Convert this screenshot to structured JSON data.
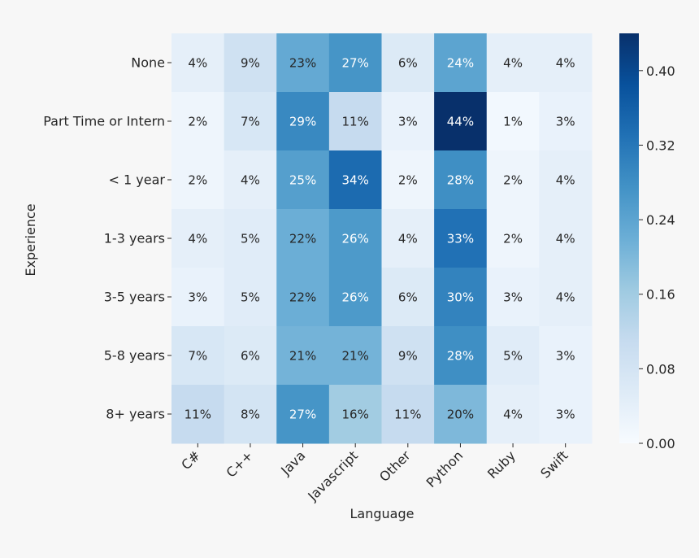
{
  "chart_data": {
    "type": "heatmap",
    "title": "",
    "xlabel": "Language",
    "ylabel": "Experience",
    "x_categories": [
      "C#",
      "C++",
      "Java",
      "Javascript",
      "Other",
      "Python",
      "Ruby",
      "Swift"
    ],
    "y_categories": [
      "None",
      "Part Time or Intern",
      "< 1 year",
      "1-3 years",
      "3-5 years",
      "5-8 years",
      "8+ years"
    ],
    "values": [
      [
        0.04,
        0.09,
        0.23,
        0.27,
        0.06,
        0.24,
        0.04,
        0.04
      ],
      [
        0.02,
        0.07,
        0.29,
        0.11,
        0.03,
        0.44,
        0.01,
        0.03
      ],
      [
        0.02,
        0.04,
        0.25,
        0.34,
        0.02,
        0.28,
        0.02,
        0.04
      ],
      [
        0.04,
        0.05,
        0.22,
        0.26,
        0.04,
        0.33,
        0.02,
        0.04
      ],
      [
        0.03,
        0.05,
        0.22,
        0.26,
        0.06,
        0.3,
        0.03,
        0.04
      ],
      [
        0.07,
        0.06,
        0.21,
        0.21,
        0.09,
        0.28,
        0.05,
        0.03
      ],
      [
        0.11,
        0.08,
        0.27,
        0.16,
        0.11,
        0.2,
        0.04,
        0.03
      ]
    ],
    "annotations": [
      [
        "4%",
        "9%",
        "23%",
        "27%",
        "6%",
        "24%",
        "4%",
        "4%"
      ],
      [
        "2%",
        "7%",
        "29%",
        "11%",
        "3%",
        "44%",
        "1%",
        "3%"
      ],
      [
        "2%",
        "4%",
        "25%",
        "34%",
        "2%",
        "28%",
        "2%",
        "4%"
      ],
      [
        "4%",
        "5%",
        "22%",
        "26%",
        "4%",
        "33%",
        "2%",
        "4%"
      ],
      [
        "3%",
        "5%",
        "22%",
        "26%",
        "6%",
        "30%",
        "3%",
        "4%"
      ],
      [
        "7%",
        "6%",
        "21%",
        "21%",
        "9%",
        "28%",
        "5%",
        "3%"
      ],
      [
        "11%",
        "8%",
        "27%",
        "16%",
        "11%",
        "20%",
        "4%",
        "3%"
      ]
    ],
    "colormap": "Blues",
    "colorbar": {
      "range": [
        0,
        0.44
      ],
      "ticks": [
        0.0,
        0.08,
        0.16,
        0.24,
        0.32,
        0.4
      ],
      "tick_labels": [
        "0.00",
        "0.08",
        "0.16",
        "0.24",
        "0.32",
        "0.40"
      ]
    }
  }
}
